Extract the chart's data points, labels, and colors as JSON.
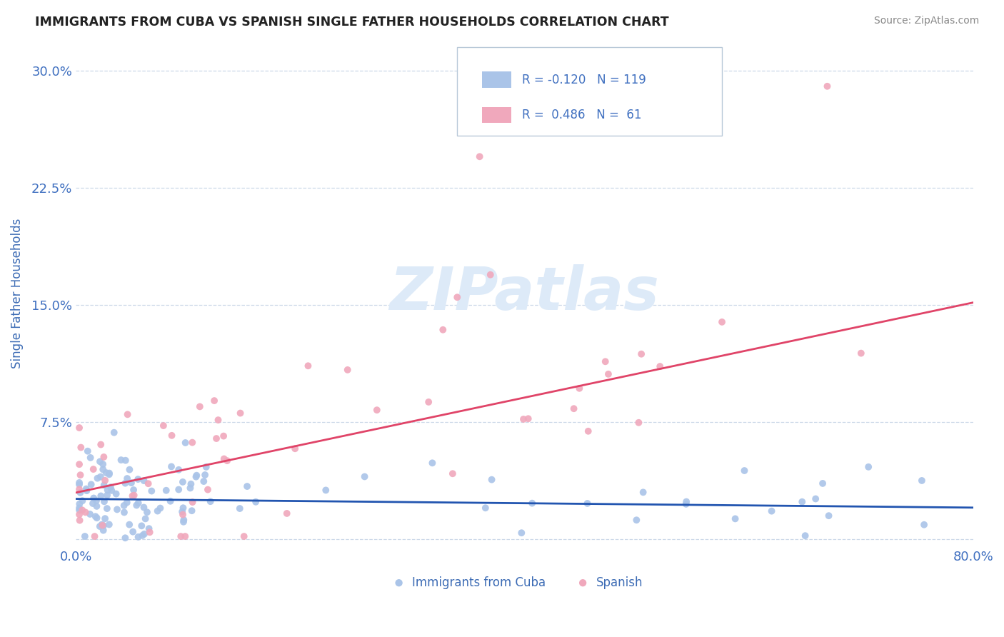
{
  "title": "IMMIGRANTS FROM CUBA VS SPANISH SINGLE FATHER HOUSEHOLDS CORRELATION CHART",
  "source": "Source: ZipAtlas.com",
  "ylabel": "Single Father Households",
  "xlim": [
    0.0,
    0.8
  ],
  "ylim": [
    -0.005,
    0.32
  ],
  "yticks": [
    0.0,
    0.075,
    0.15,
    0.225,
    0.3
  ],
  "ytick_labels": [
    "",
    "7.5%",
    "15.0%",
    "22.5%",
    "30.0%"
  ],
  "xticks": [
    0.0,
    0.2,
    0.4,
    0.6,
    0.8
  ],
  "xtick_labels": [
    "0.0%",
    "",
    "",
    "",
    "80.0%"
  ],
  "legend_R_cuba": "-0.120",
  "legend_N_cuba": "119",
  "legend_R_spanish": "0.486",
  "legend_N_spanish": "61",
  "cuba_color": "#aac4e8",
  "spanish_color": "#f0a8bc",
  "cuba_line_color": "#2255b0",
  "spanish_line_color": "#e04468",
  "background_color": "#ffffff",
  "watermark_color": "#ddeaf8",
  "grid_color": "#ccd8e8",
  "title_color": "#222222",
  "axis_label_color": "#3d6cb5",
  "tick_label_color": "#4070c0",
  "source_color": "#888888"
}
